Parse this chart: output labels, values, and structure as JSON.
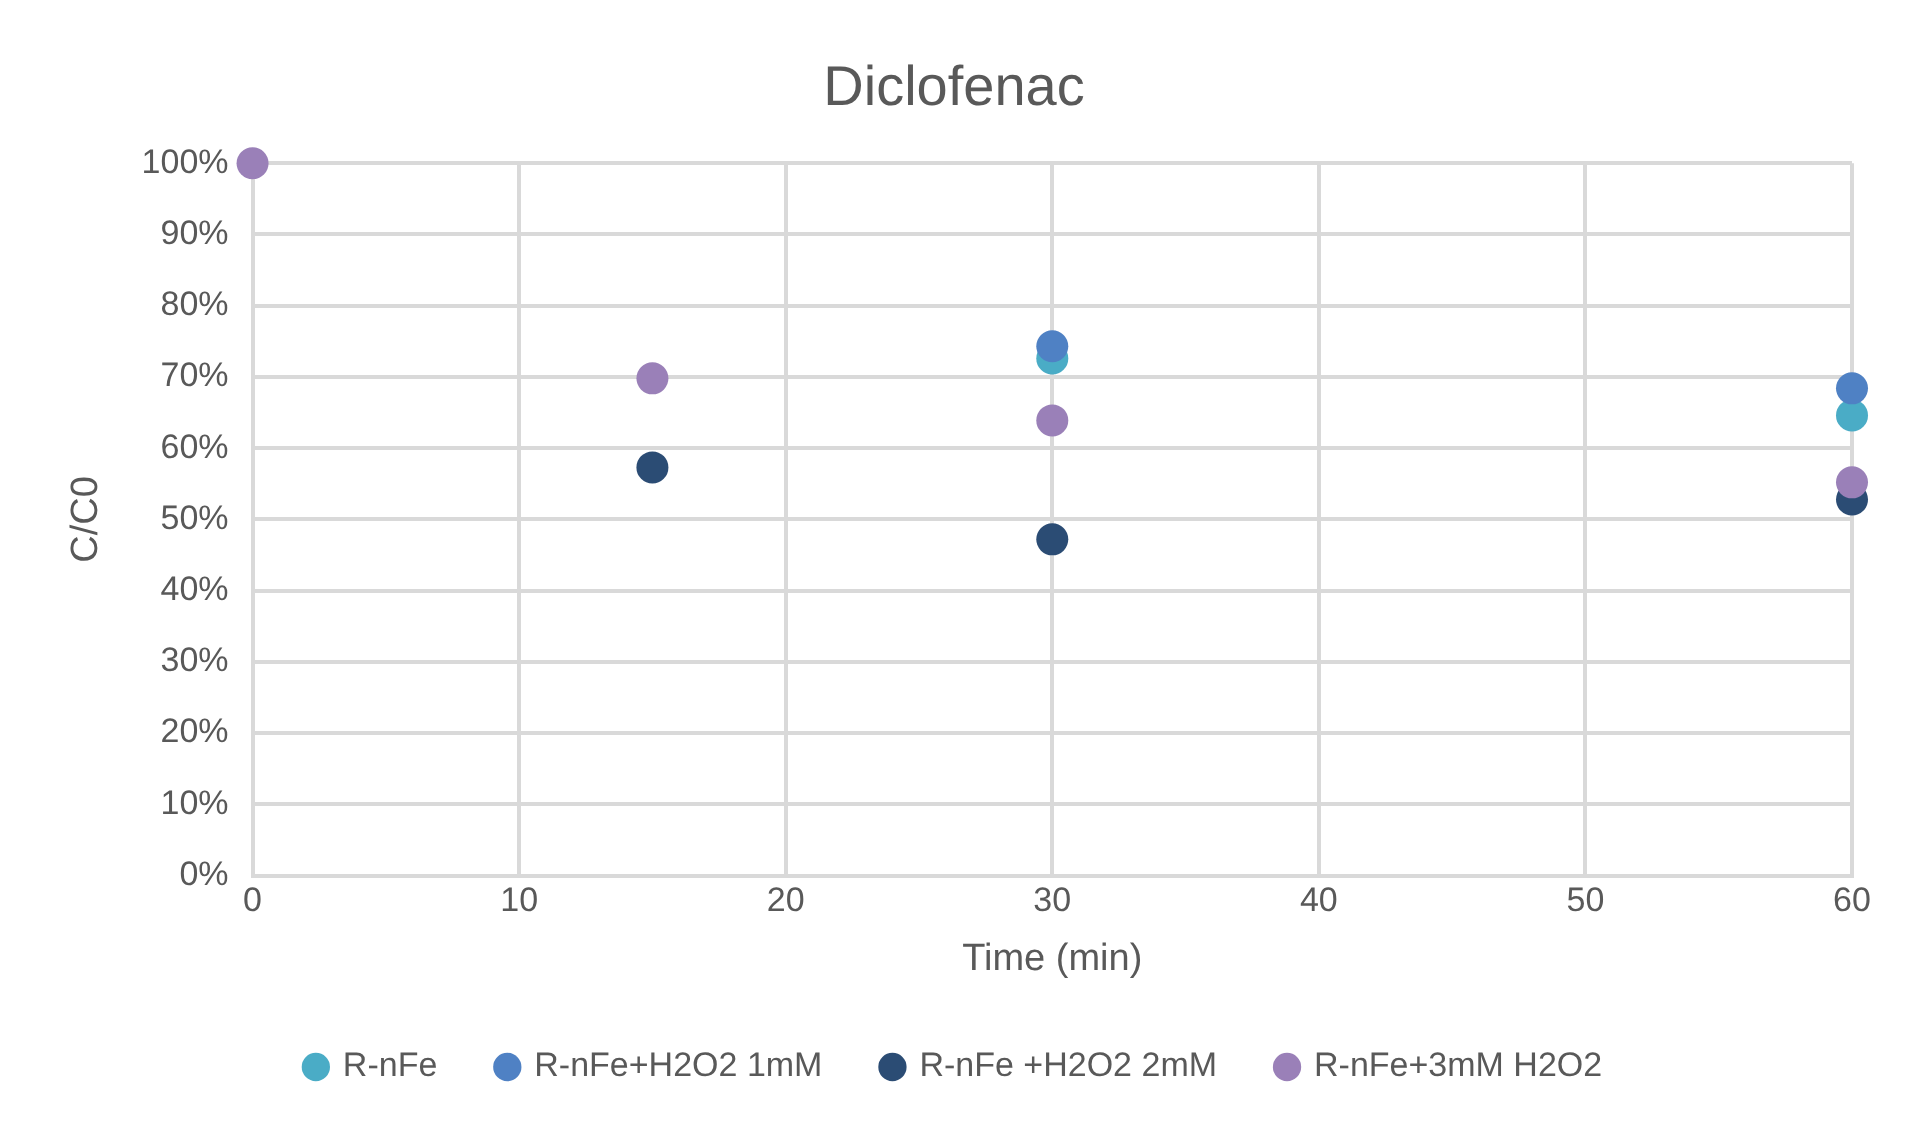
{
  "chart_data": {
    "type": "scatter",
    "title": "Diclofenac",
    "xlabel": "Time (min)",
    "ylabel": "C/C0",
    "x": [
      0,
      15,
      30,
      60
    ],
    "series": [
      {
        "name": "R-nFe",
        "color": "#4aacc6",
        "values": [
          null,
          null,
          72.6,
          64.6
        ]
      },
      {
        "name": "R-nFe+H2O2 1mM",
        "color": "#4f81c4",
        "values": [
          null,
          null,
          74.3,
          68.4
        ]
      },
      {
        "name": "R-nFe +H2O2 2mM",
        "color": "#2b4c74",
        "values": [
          null,
          57.3,
          47.2,
          52.8
        ]
      },
      {
        "name": "R-nFe+3mM H2O2",
        "color": "#9a80b8",
        "values": [
          100,
          69.8,
          63.9,
          55.2
        ]
      }
    ],
    "xlim": [
      0,
      60
    ],
    "xticks": [
      0,
      10,
      20,
      30,
      40,
      50,
      60
    ],
    "ylim": [
      0,
      100
    ],
    "yticks": [
      {
        "value": 0,
        "label": "0%"
      },
      {
        "value": 10,
        "label": "10%"
      },
      {
        "value": 20,
        "label": "20%"
      },
      {
        "value": 30,
        "label": "30%"
      },
      {
        "value": 40,
        "label": "40%"
      },
      {
        "value": 50,
        "label": "50%"
      },
      {
        "value": 60,
        "label": "60%"
      },
      {
        "value": 70,
        "label": "70%"
      },
      {
        "value": 80,
        "label": "80%"
      },
      {
        "value": 90,
        "label": "90%"
      },
      {
        "value": 100,
        "label": "100%"
      }
    ],
    "grid": true,
    "legend": "bottom",
    "marker": "circle"
  }
}
